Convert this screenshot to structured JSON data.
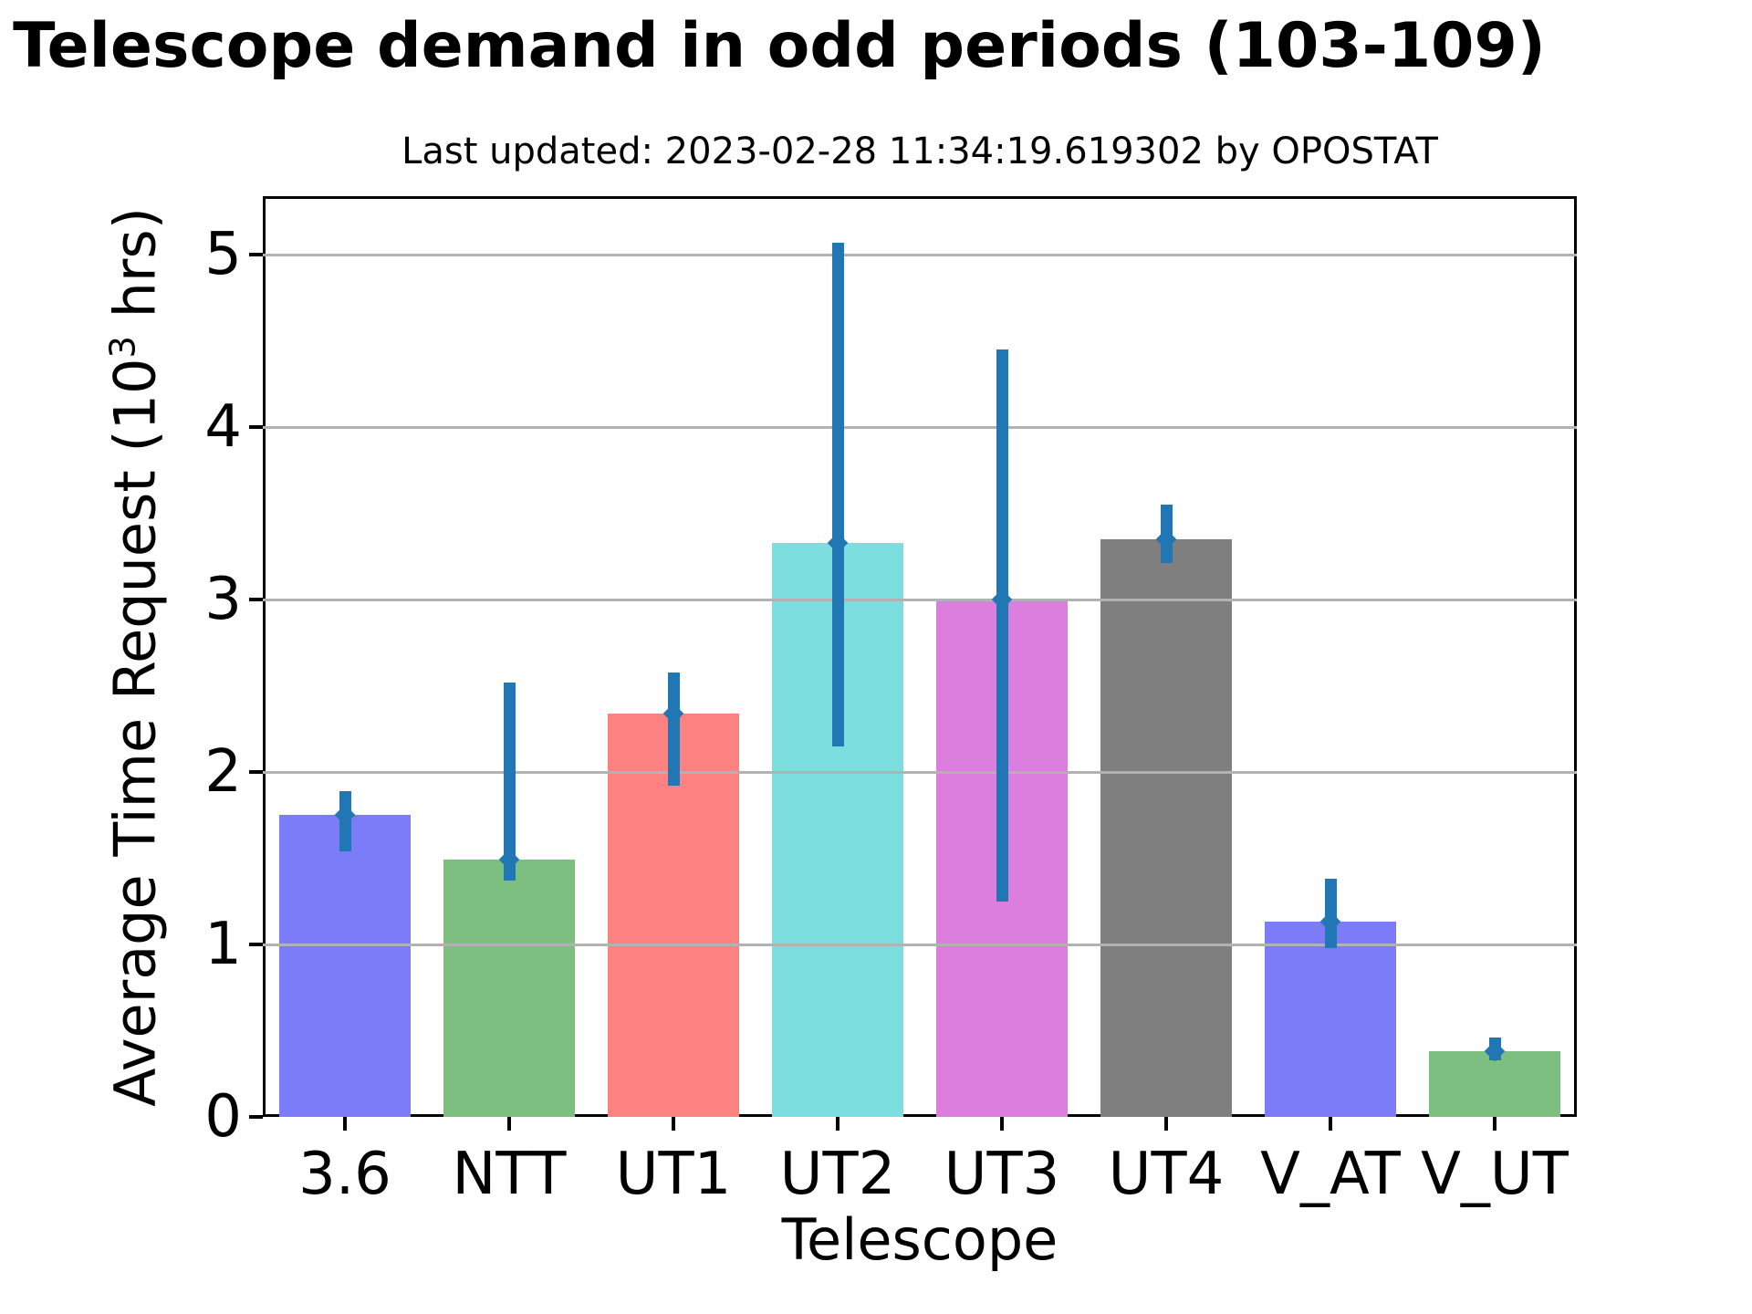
{
  "chart_data": {
    "type": "bar",
    "title": "Telescope demand in odd periods (103-109)",
    "subtitle": "Last updated: 2023-02-28 11:34:19.619302 by OPOSTAT",
    "xlabel": "Telescope",
    "ylabel": "Average Time Request (10³ hrs)",
    "ylabel_parts": {
      "prefix": "Average Time Request (10",
      "sup": "3",
      "suffix": " hrs)"
    },
    "categories": [
      "3.6",
      "NTT",
      "UT1",
      "UT2",
      "UT3",
      "UT4",
      "V_AT",
      "V_UT"
    ],
    "values": [
      1.75,
      1.49,
      2.34,
      3.33,
      3.0,
      3.35,
      1.13,
      0.38
    ],
    "error_low": [
      1.54,
      1.37,
      1.92,
      2.15,
      1.25,
      3.21,
      0.98,
      0.33
    ],
    "error_high": [
      1.89,
      2.52,
      2.58,
      5.07,
      4.45,
      3.55,
      1.38,
      0.46
    ],
    "bar_colors": [
      "#7c7cf8",
      "#7dbf81",
      "#fc8181",
      "#7cdede",
      "#dc7ede",
      "#7f7f7f",
      "#7c7cf8",
      "#7dbf81"
    ],
    "error_bar_color": "#2176b4",
    "grid_color": "#b2b2b2",
    "axis_color": "#000000",
    "background_color": "#ffffff",
    "ylim": [
      0,
      5.34
    ],
    "yticks": [
      0,
      1,
      2,
      3,
      4,
      5
    ],
    "grid": "horizontal",
    "legend": "none",
    "bar_width_fraction": 0.8
  }
}
